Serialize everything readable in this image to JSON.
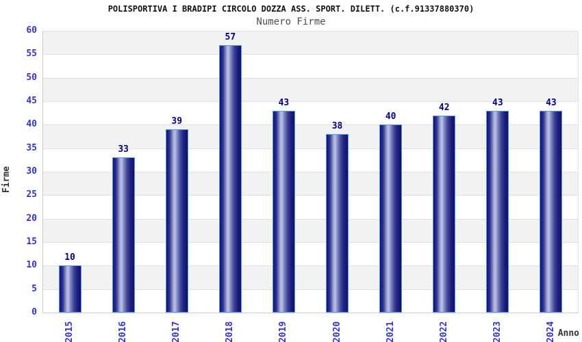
{
  "chart_data": {
    "type": "bar",
    "title": "POLISPORTIVA I BRADIPI CIRCOLO DOZZA ASS. SPORT. DILETT. (c.f.91337880370)",
    "subtitle": "Numero Firme",
    "xlabel": "Anno",
    "ylabel": "Firme",
    "categories": [
      "2015",
      "2016",
      "2017",
      "2018",
      "2019",
      "2020",
      "2021",
      "2022",
      "2023",
      "2024"
    ],
    "values": [
      10,
      33,
      39,
      57,
      43,
      38,
      40,
      42,
      43,
      43
    ],
    "bar_value_labels": [
      "10",
      "33",
      "39",
      "57",
      "43",
      "38",
      "40",
      "42",
      "43",
      "43"
    ],
    "ylim": [
      0,
      60
    ],
    "ytick_step": 5,
    "yticks": [
      0,
      5,
      10,
      15,
      20,
      25,
      30,
      35,
      40,
      45,
      50,
      55,
      60
    ],
    "grid": "alternating horizontal bands of 5 units, gray and white, with light gridlines every 5",
    "legend": "none",
    "colors": {
      "tick_label": "#3333cc",
      "value_label": "#00007f",
      "axis_title": "#333333",
      "title_text": "#111111",
      "subtitle_text": "#4d4d4d",
      "bar_dark": "#13136d",
      "bar_highlight": "#bcc2e5",
      "bar_border": "#5599ee",
      "band_gray": "#f2f2f2",
      "gridline": "#e0e0e0",
      "axis_line": "#c9c9c9",
      "background": "#ffffff"
    }
  }
}
